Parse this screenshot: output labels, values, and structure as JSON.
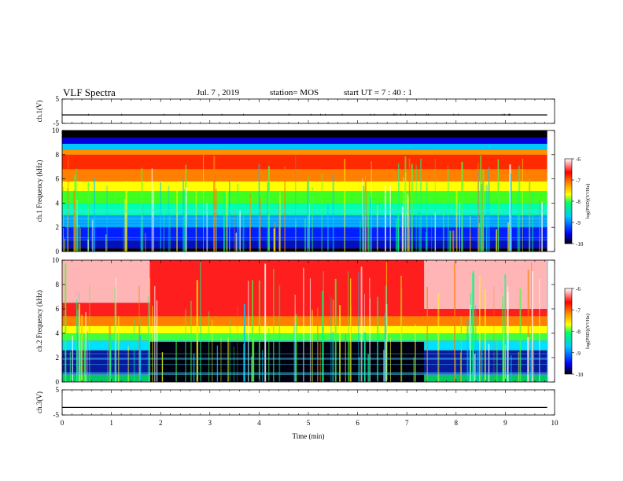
{
  "header": {
    "title": "VLF Spectra",
    "date": "Jul. 7 , 2019",
    "station": "station= MOS",
    "start": "start UT = 7 : 40 : 1"
  },
  "chart_data": [
    {
      "type": "line",
      "panel": "ch1-voltage",
      "ylabel": "ch.1(V)",
      "ylim": [
        -5,
        5
      ],
      "yticks": [
        "5",
        "-5"
      ],
      "x": [
        0,
        9.85
      ],
      "y": [
        -1.5,
        -1.5
      ],
      "line_color": "#000000"
    },
    {
      "type": "heatmap",
      "panel": "ch1-spectrogram",
      "ylabel": "ch.1 Frequency (kHz)",
      "ylim": [
        0,
        10
      ],
      "yticks": [
        "0",
        "2",
        "4",
        "6",
        "8",
        "10"
      ],
      "xlim": [
        0,
        9.85
      ],
      "colorbar": {
        "label": "log(PSD)(V²/Hz)",
        "range": [
          -10,
          -6
        ],
        "ticks": [
          "-6",
          "-7",
          "-8",
          "-9",
          "-10"
        ]
      }
    },
    {
      "type": "heatmap",
      "panel": "ch2-spectrogram",
      "ylabel": "ch.2 Frequency (kHz)",
      "ylim": [
        0,
        10
      ],
      "yticks": [
        "0",
        "2",
        "4",
        "6",
        "8",
        "10"
      ],
      "xlim": [
        0,
        9.85
      ],
      "colorbar": {
        "label": "log(PSD)(V²/Hz)",
        "range": [
          -10,
          -6
        ],
        "ticks": [
          "-6",
          "-7",
          "-8",
          "-9",
          "-10"
        ]
      }
    },
    {
      "type": "line",
      "panel": "ch3-voltage",
      "ylabel": "ch.3(V)",
      "ylim": [
        -5,
        5
      ],
      "yticks": [
        "5",
        "-5"
      ],
      "x": [
        0,
        9.85
      ],
      "y": [
        -2,
        -2
      ],
      "line_color": "#000000"
    }
  ],
  "x_axis": {
    "label": "Time (min)",
    "ticks": [
      "0",
      "1",
      "2",
      "3",
      "4",
      "5",
      "6",
      "7",
      "8",
      "9",
      "10"
    ],
    "xlim": [
      0,
      10
    ]
  },
  "colormap": [
    "#000080",
    "#0000ff",
    "#00b4ff",
    "#00ffc8",
    "#32ff00",
    "#ffff00",
    "#ff8c00",
    "#ff0000",
    "#ffffff"
  ]
}
